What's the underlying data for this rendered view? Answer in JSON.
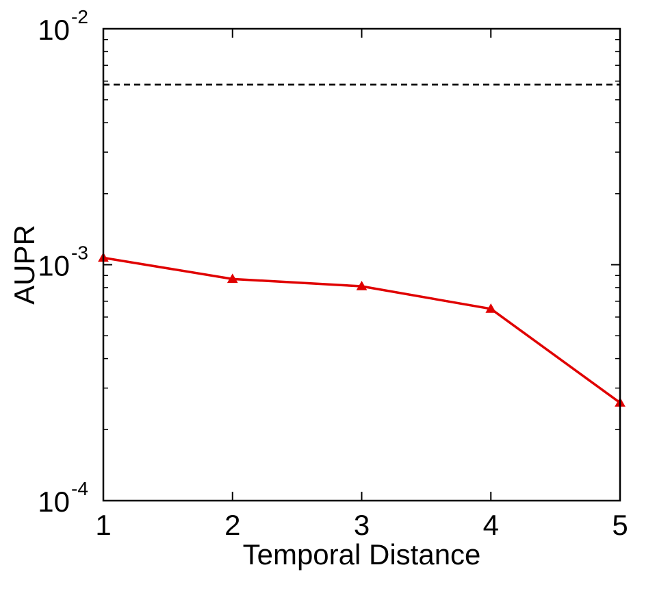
{
  "chart_data": {
    "type": "line",
    "title": "",
    "xlabel": "Temporal Distance",
    "ylabel": "AUPR",
    "x_ticks": [
      "1",
      "2",
      "3",
      "4",
      "5"
    ],
    "y_ticks": [
      {
        "value": 0.0001,
        "base": "10",
        "exp": "-4"
      },
      {
        "value": 0.001,
        "base": "10",
        "exp": "-3"
      },
      {
        "value": 0.01,
        "base": "10",
        "exp": "-2"
      }
    ],
    "xlim": [
      1,
      5
    ],
    "ylim": [
      0.0001,
      0.01
    ],
    "yscale": "log",
    "grid": false,
    "series": [
      {
        "x": [
          1,
          2,
          3,
          4,
          5
        ],
        "values": [
          0.00107,
          0.00087,
          0.00081,
          0.00065,
          0.00026
        ],
        "color": "#e00000",
        "marker": "triangle",
        "style": "solid"
      }
    ],
    "reference_lines": [
      {
        "y": 0.0058,
        "style": "dashed",
        "color": "#000000"
      }
    ]
  }
}
